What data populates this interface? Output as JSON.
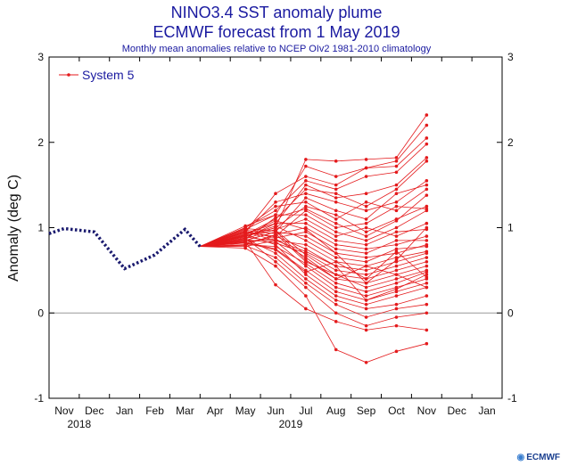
{
  "chart_data": {
    "type": "line",
    "title": "NINO3.4 SST anomaly plume",
    "subtitle": "ECMWF forecast from 1 May 2019",
    "caption": "Monthly mean anomalies relative to NCEP OIv2 1981-2010 climatology",
    "ylabel": "Anomaly (deg C)",
    "ylim": [
      -1,
      3
    ],
    "yticks": [
      -1,
      0,
      1,
      2,
      3
    ],
    "x_month_labels": [
      "Nov",
      "Dec",
      "Jan",
      "Feb",
      "Mar",
      "Apr",
      "May",
      "Jun",
      "Jul",
      "Aug",
      "Sep",
      "Oct",
      "Nov",
      "Dec",
      "Jan"
    ],
    "year_labels": [
      {
        "label": "2018",
        "month_index": 0.5
      },
      {
        "label": "2019",
        "month_index": 7.5
      }
    ],
    "xlim": [
      -0.5,
      14.5
    ],
    "legend": {
      "label": "System 5",
      "placement": "top-left"
    },
    "colors": {
      "observed": "#1a1a6e",
      "forecast": "#e41a1c",
      "title": "#1a1aa0",
      "zero_line": "#999999"
    },
    "observed": {
      "name": "observations",
      "x": [
        -0.5,
        0,
        1,
        2,
        3,
        4,
        4.5
      ],
      "y": [
        0.93,
        0.99,
        0.95,
        0.52,
        0.68,
        0.98,
        0.78
      ]
    },
    "forecast": {
      "name": "System 5",
      "start": [
        4.5,
        0.78
      ],
      "x": [
        6,
        7,
        8,
        9,
        10,
        11,
        12
      ],
      "members": [
        [
          0.9,
          1.0,
          1.8,
          1.78,
          1.8,
          1.82,
          2.32
        ],
        [
          1.02,
          1.15,
          1.72,
          1.6,
          1.7,
          1.78,
          2.2
        ],
        [
          0.95,
          1.4,
          1.6,
          1.5,
          1.7,
          1.72,
          2.05
        ],
        [
          1.0,
          1.2,
          1.55,
          1.45,
          1.6,
          1.65,
          1.98
        ],
        [
          0.88,
          1.05,
          1.5,
          1.35,
          1.4,
          1.5,
          1.82
        ],
        [
          0.92,
          1.1,
          1.45,
          1.4,
          1.25,
          1.45,
          1.78
        ],
        [
          0.95,
          1.3,
          1.4,
          1.3,
          1.2,
          1.3,
          1.55
        ],
        [
          0.85,
          0.95,
          1.35,
          1.2,
          1.1,
          1.4,
          1.5
        ],
        [
          1.0,
          1.25,
          1.3,
          1.1,
          1.3,
          1.2,
          1.45
        ],
        [
          0.9,
          1.0,
          1.25,
          1.15,
          0.95,
          1.1,
          1.25
        ],
        [
          0.82,
          0.9,
          1.2,
          1.0,
          1.05,
          1.25,
          1.22
        ],
        [
          0.98,
          1.15,
          1.15,
          0.95,
          0.85,
          1.0,
          1.2
        ],
        [
          0.87,
          0.98,
          1.1,
          0.9,
          1.0,
          0.9,
          1.05
        ],
        [
          0.93,
          1.05,
          1.05,
          0.85,
          0.8,
          0.95,
          0.98
        ],
        [
          0.8,
          0.92,
          1.0,
          0.8,
          0.75,
          0.8,
          0.9
        ],
        [
          0.96,
          0.88,
          0.95,
          0.75,
          0.7,
          0.85,
          0.85
        ],
        [
          0.85,
          0.95,
          0.9,
          0.7,
          0.65,
          0.7,
          0.8
        ],
        [
          0.9,
          1.02,
          0.85,
          0.65,
          0.6,
          0.75,
          0.78
        ],
        [
          0.78,
          0.85,
          0.8,
          0.6,
          0.55,
          0.65,
          0.72
        ],
        [
          0.94,
          0.9,
          0.75,
          0.55,
          0.5,
          0.6,
          0.7
        ],
        [
          0.86,
          0.82,
          0.7,
          0.5,
          0.45,
          0.55,
          0.65
        ],
        [
          0.91,
          0.97,
          0.68,
          0.45,
          0.4,
          0.5,
          0.6
        ],
        [
          0.84,
          0.87,
          0.65,
          0.4,
          0.35,
          0.45,
          0.55
        ],
        [
          0.97,
          0.93,
          0.6,
          0.45,
          0.3,
          0.4,
          0.5
        ],
        [
          0.8,
          0.78,
          0.58,
          0.35,
          0.25,
          0.35,
          0.48
        ],
        [
          0.89,
          0.84,
          0.55,
          0.3,
          0.2,
          0.3,
          0.4
        ],
        [
          0.83,
          0.75,
          0.5,
          0.25,
          0.15,
          0.25,
          0.35
        ],
        [
          0.92,
          0.8,
          0.45,
          0.2,
          0.1,
          0.2,
          0.3
        ],
        [
          0.87,
          0.7,
          0.4,
          0.15,
          0.05,
          0.1,
          0.2
        ],
        [
          0.79,
          0.65,
          0.35,
          0.1,
          -0.05,
          0.05,
          0.1
        ],
        [
          0.88,
          0.6,
          0.3,
          0.0,
          -0.15,
          -0.05,
          0.0
        ],
        [
          0.84,
          0.33,
          0.05,
          -0.1,
          -0.2,
          -0.15,
          -0.2
        ],
        [
          0.76,
          0.55,
          0.2,
          -0.43,
          -0.58,
          -0.45,
          -0.36
        ],
        [
          0.95,
          0.85,
          0.72,
          0.55,
          0.15,
          0.28,
          0.45
        ],
        [
          0.91,
          1.08,
          0.98,
          0.7,
          0.35,
          0.62,
          1.0
        ],
        [
          0.86,
          1.12,
          1.22,
          1.05,
          0.9,
          1.08,
          1.38
        ],
        [
          0.99,
          0.96,
          0.62,
          0.4,
          0.55,
          0.45,
          0.3
        ],
        [
          0.82,
          0.74,
          0.48,
          0.6,
          0.4,
          0.72,
          0.42
        ]
      ]
    }
  },
  "footer": {
    "logo_text": "ECMWF",
    "logo_mark": "◉"
  }
}
